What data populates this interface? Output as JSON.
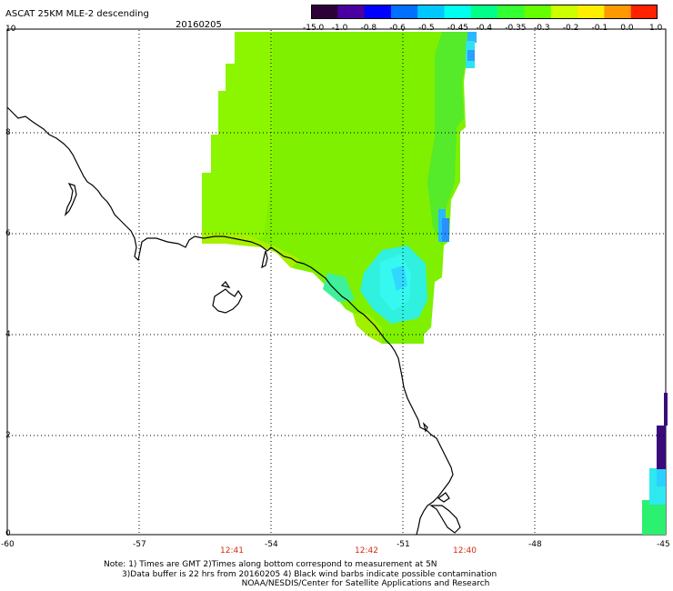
{
  "header": {
    "title": "ASCAT 25KM MLE-2 descending",
    "date": "20160205"
  },
  "colorbar": {
    "labels": [
      "-15.0",
      "-1.0",
      "-0.8",
      "-0.6",
      "-0.5",
      "-0.45",
      "-0.4",
      "-0.35",
      "-0.3",
      "-0.2",
      "-0.1",
      "0.0",
      "1.0"
    ],
    "colors": [
      "#2d0038",
      "#4a00a0",
      "#0000ff",
      "#0070ff",
      "#00c8ff",
      "#00ffee",
      "#00ff88",
      "#33ff33",
      "#66ff00",
      "#ccff00",
      "#ffee00",
      "#ff9900",
      "#ff2200"
    ]
  },
  "axes": {
    "x_ticks": [
      "-60",
      "-57",
      "-54",
      "-51",
      "-48",
      "-45"
    ],
    "y_ticks": [
      "10",
      "8",
      "6",
      "4",
      "2",
      "0"
    ],
    "xlim": [
      -60,
      -45
    ],
    "ylim": [
      0,
      10
    ],
    "grid": true
  },
  "times": [
    "12:41",
    "12:42",
    "12:40"
  ],
  "notes": [
    "Note: 1) Times are GMT 2)Times along bottom correspond to measurement at 5N",
    "       3)Data buffer is 22 hrs from 20160205 4) Black wind barbs indicate possible contamination",
    "                                                     NOAA/NESDIS/Center for Satellite Applications and Research"
  ]
}
